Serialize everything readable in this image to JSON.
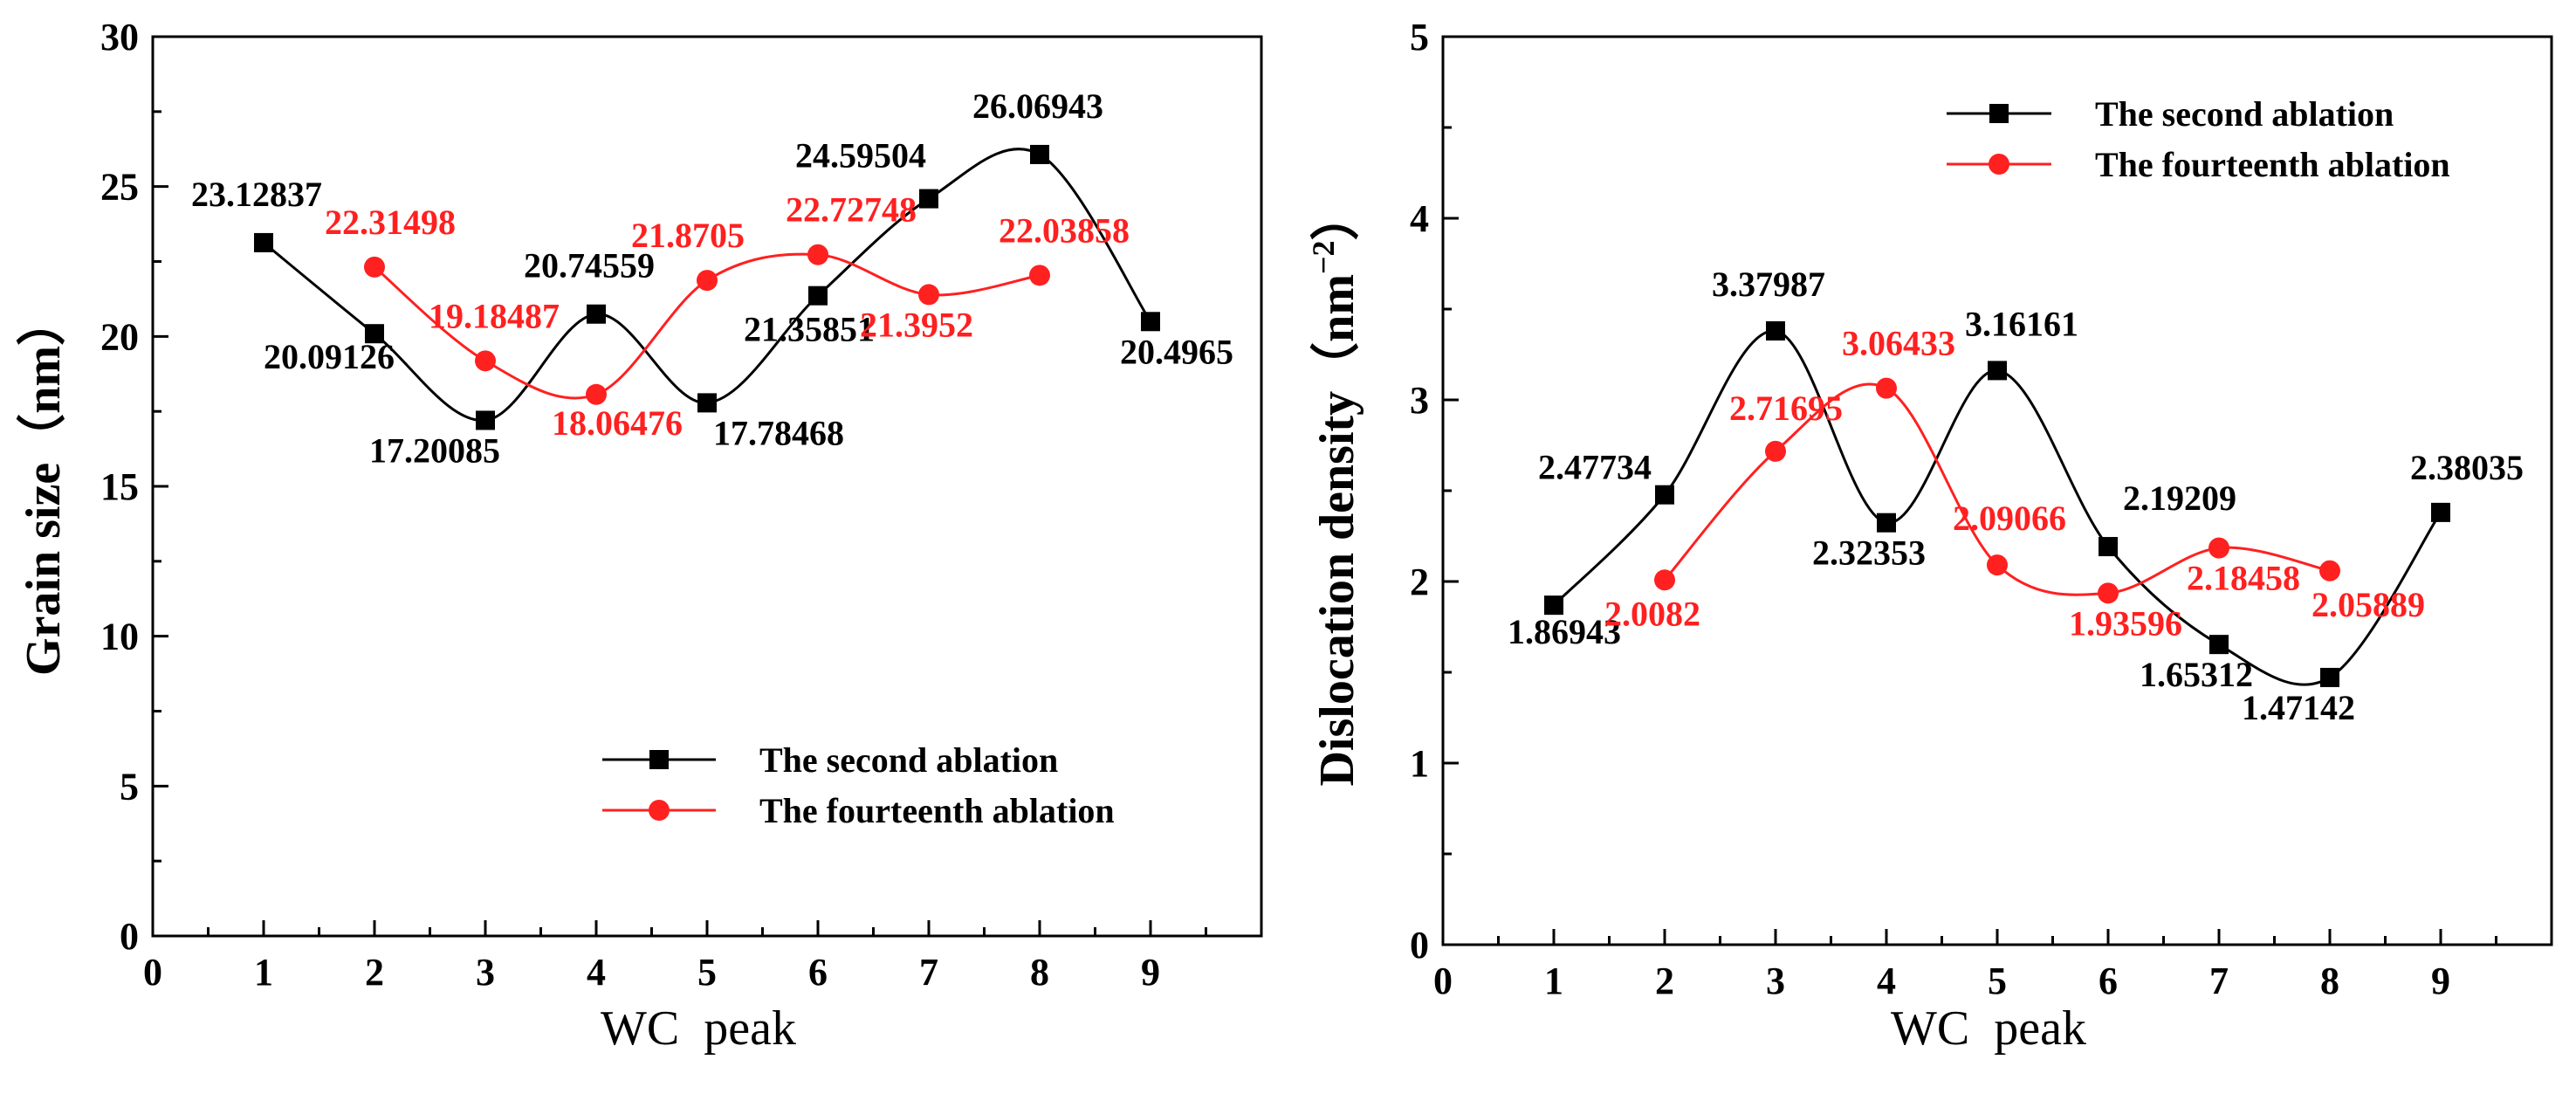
{
  "chart_data": [
    {
      "type": "line",
      "xlabel": "WC  peak",
      "ylabel": "Grain size（nm）",
      "xlim": [
        0,
        10
      ],
      "ylim": [
        0,
        30
      ],
      "xticks": [
        "0",
        "1",
        "2",
        "3",
        "4",
        "5",
        "6",
        "7",
        "8",
        "9"
      ],
      "yticks": [
        "0",
        "5",
        "10",
        "15",
        "20",
        "25",
        "30"
      ],
      "legend": [
        "The second ablation",
        "The fourteenth ablation"
      ],
      "series": [
        {
          "name": "The second ablation",
          "color": "#000000",
          "marker": "square",
          "x": [
            1,
            2,
            3,
            4,
            5,
            6,
            7,
            8,
            9
          ],
          "values": [
            23.12837,
            20.09126,
            17.20085,
            20.74559,
            17.78468,
            21.35851,
            24.59504,
            26.06943,
            20.4965
          ],
          "labels": [
            "23.12837",
            "20.09126",
            "17.20085",
            "20.74559",
            "17.78468",
            "21.35851",
            "24.59504",
            "26.06943",
            "20.4965"
          ]
        },
        {
          "name": "The fourteenth ablation",
          "color": "#ff2020",
          "marker": "circle",
          "x": [
            2,
            3,
            4,
            5,
            6,
            7,
            8
          ],
          "values": [
            22.31498,
            19.18487,
            18.06476,
            21.8705,
            22.72748,
            21.3952,
            22.03858
          ],
          "labels": [
            "22.31498",
            "19.18487",
            "18.06476",
            "21.8705",
            "22.72748",
            "21.3952",
            "22.03858"
          ]
        }
      ]
    },
    {
      "type": "line",
      "xlabel": "WC  peak",
      "ylabel": "Dislocation density（nm",
      "ylabel_sup": "−2",
      "ylabel_end": "）",
      "xlim": [
        0,
        10
      ],
      "ylim": [
        0,
        5
      ],
      "xticks": [
        "0",
        "1",
        "2",
        "3",
        "4",
        "5",
        "6",
        "7",
        "8",
        "9"
      ],
      "yticks": [
        "0",
        "1",
        "2",
        "3",
        "4",
        "5"
      ],
      "legend": [
        "The second ablation",
        "The fourteenth ablation"
      ],
      "series": [
        {
          "name": "The second ablation",
          "color": "#000000",
          "marker": "square",
          "x": [
            1,
            2,
            3,
            4,
            5,
            6,
            7,
            8,
            9
          ],
          "values": [
            1.86943,
            2.47734,
            3.37987,
            2.32353,
            3.16161,
            2.19209,
            1.65312,
            1.47142,
            2.38035
          ],
          "labels": [
            "1.86943",
            "2.47734",
            "3.37987",
            "2.32353",
            "3.16161",
            "2.19209",
            "1.65312",
            "1.47142",
            "2.38035"
          ]
        },
        {
          "name": "The fourteenth ablation",
          "color": "#ff2020",
          "marker": "circle",
          "x": [
            2,
            3,
            4,
            5,
            6,
            7,
            8
          ],
          "values": [
            2.0082,
            2.71695,
            3.06433,
            2.09066,
            1.93596,
            2.18458,
            2.05889
          ],
          "labels": [
            "2.0082",
            "2.71695",
            "3.06433",
            "2.09066",
            "1.93596",
            "2.18458",
            "2.05889"
          ]
        }
      ]
    }
  ]
}
